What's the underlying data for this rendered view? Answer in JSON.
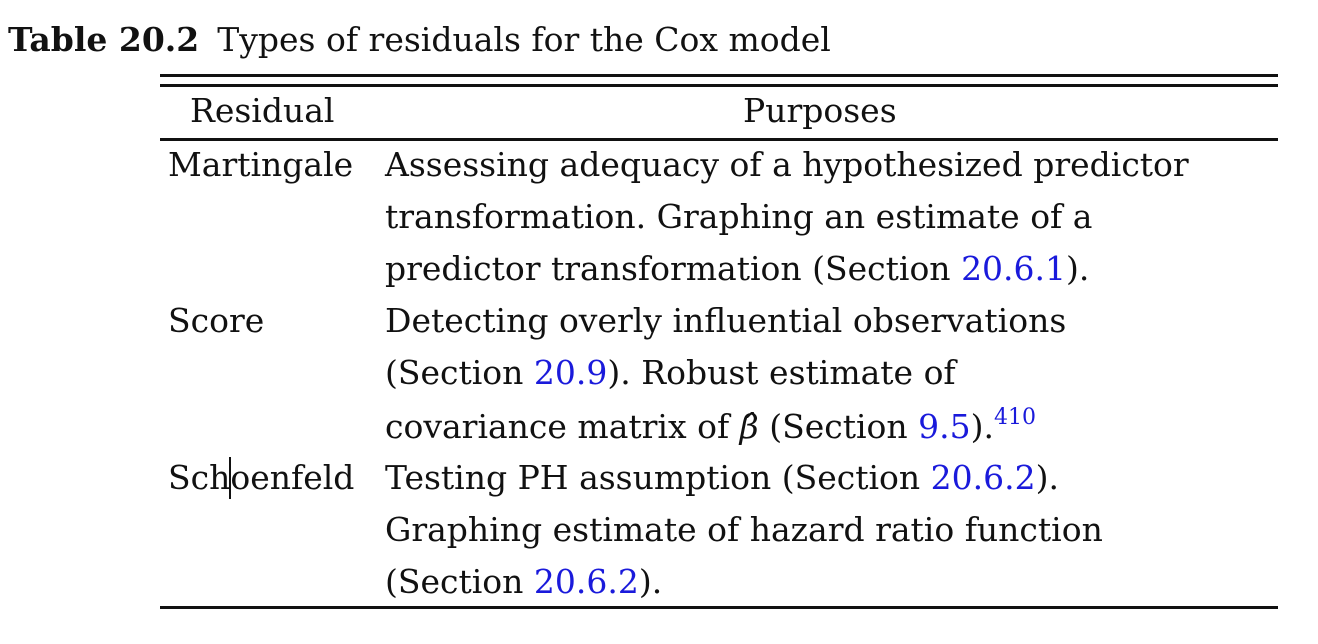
{
  "caption": {
    "label": "Table 20.2",
    "text": "Types of residuals for the Cox model"
  },
  "header": {
    "residual": "Residual",
    "purposes": "Purposes"
  },
  "rows": [
    {
      "name": "Martingale",
      "lines": [
        "Assessing adequacy of a hypothesized predictor",
        "transformation. Graphing an estimate of a"
      ],
      "line3_pre": "predictor transformation (Section ",
      "line3_link": "20.6.1",
      "line3_post": ")."
    },
    {
      "name": "Score",
      "line1": "Detecting overly influential observations",
      "line2_pre": "(Section ",
      "line2_link": "20.9",
      "line2_post": "). Robust estimate of",
      "line3_pre": "covariance matrix of ",
      "line3_symbol": "β̂",
      "line3_mid": " (Section ",
      "line3_link": "9.5",
      "line3_post": ").",
      "line3_ref": "410"
    },
    {
      "name_part1": "Sch",
      "name_part2": "oenfeld",
      "line1_pre": "Testing PH assumption (Section ",
      "line1_link": "20.6.2",
      "line1_post": ").",
      "line2": "Graphing estimate of hazard ratio function",
      "line3_pre": "(Section ",
      "line3_link": "20.6.2",
      "line3_post": ")."
    }
  ]
}
